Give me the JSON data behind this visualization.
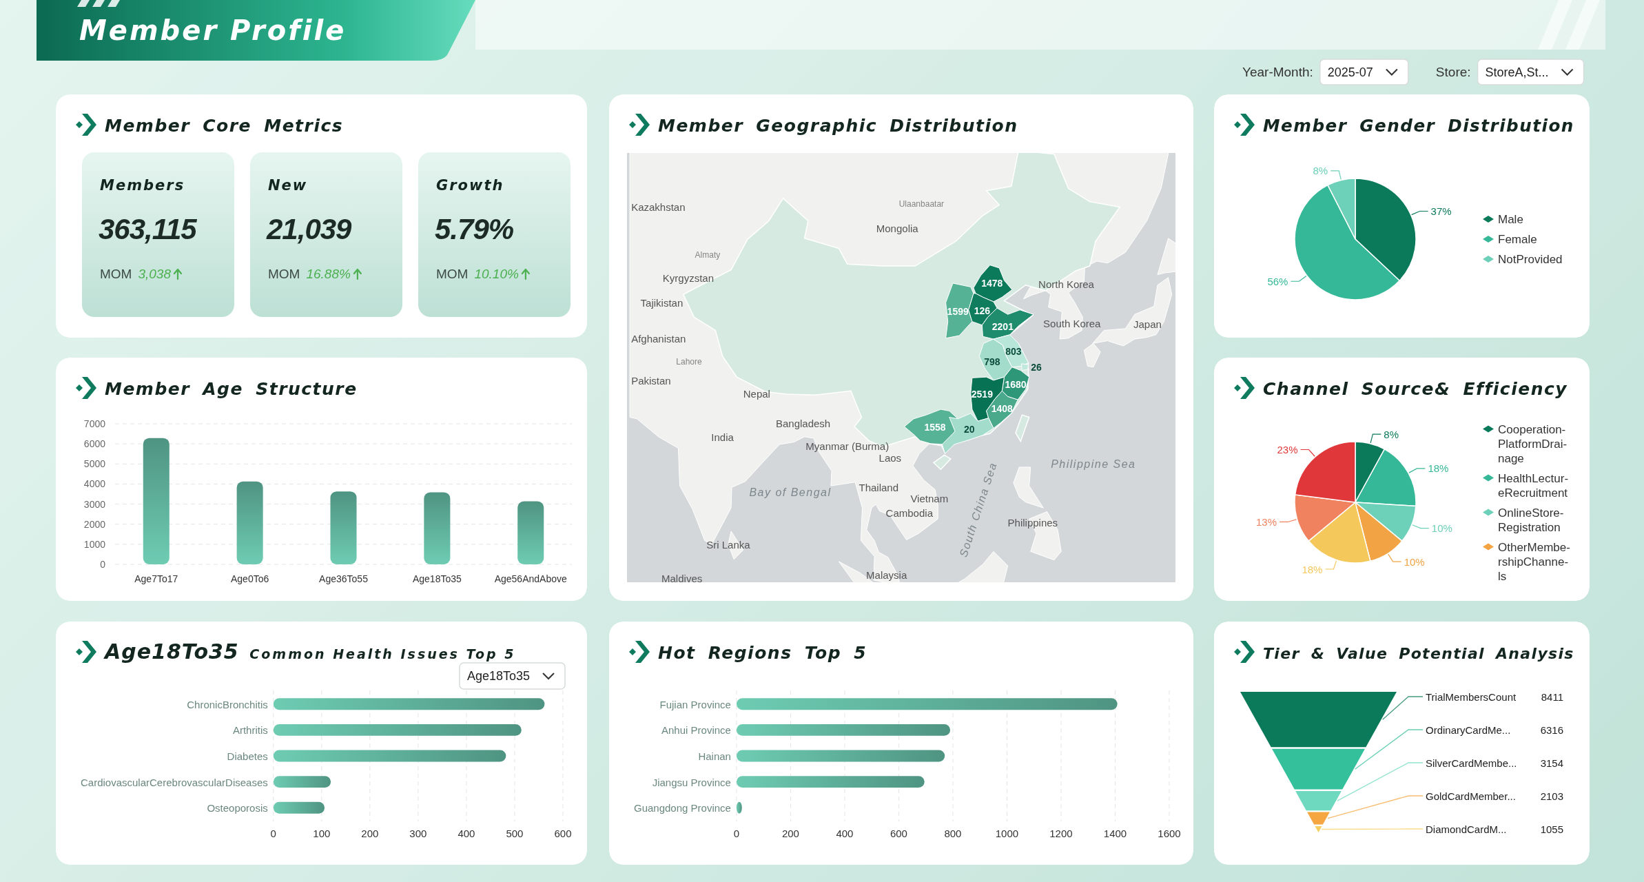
{
  "chart_data": [
    {
      "type": "other",
      "title": "Member Profile",
      "annotations": [
        "Year-Month:",
        "2025-07",
        "Store:",
        "StoreA,St..."
      ]
    },
    {
      "type": "other",
      "title": "Member Core Metrics",
      "annotations": [
        "Members",
        "363,115",
        "MOM",
        "3,038",
        "New",
        "21,039",
        "MOM",
        "16.88%",
        "Growth",
        "5.79%",
        "MOM",
        "10.10%"
      ]
    },
    {
      "type": "other",
      "title": "Member Geographic Distribution",
      "annotations": [
        "Mongolia",
        "Ulaanbaatar",
        "Kazakhstan",
        "Almaty",
        "Kyrgyzstan",
        "Tajikistan",
        "Afghanistan",
        "Pakistan",
        "Lahore",
        "Nepal",
        "India",
        "Bangladesh",
        "Myanmar (Burma)",
        "Laos",
        "Thailand",
        "Vietnam",
        "Cambodia",
        "Philippines",
        "Malaysia",
        "Sri Lanka",
        "Maldives",
        "Bay of Bengal",
        "Philippine Sea",
        "South China Sea",
        "North Korea",
        "South Korea",
        "Japan",
        "1478",
        "1599",
        "126",
        "2201",
        "798",
        "803",
        "1680",
        "26",
        "2519",
        "1408",
        "1558",
        "20"
      ]
    },
    {
      "type": "pie",
      "title": "Member Gender Distribution",
      "categories": [
        "Male",
        "Female",
        "NotProvided"
      ],
      "values": [
        37,
        55.5,
        7.5
      ],
      "value_labels": [
        "37%",
        "56%",
        "8%"
      ],
      "colors": [
        "#0b7a5a",
        "#35b897",
        "#6dd0b8"
      ],
      "legend": "right"
    },
    {
      "type": "bar",
      "title": "Member Age Structure",
      "categories": [
        "Age7To17",
        "Age0To6",
        "Age36To55",
        "Age18To35",
        "Age56AndAbove"
      ],
      "values": [
        6290,
        4130,
        3630,
        3590,
        3140
      ],
      "color": "#5aa893",
      "ylim": [
        0,
        7000
      ],
      "yticks": [
        0,
        1000,
        2000,
        3000,
        4000,
        5000,
        6000,
        7000
      ],
      "grid": "y"
    },
    {
      "type": "pie",
      "title": "Channel Source& Efficiency",
      "categories": [
        "Cooperation-PlatformDrai-nage",
        "HealthLectur-eRecruitment",
        "OnlineStore-Registration",
        "OtherMembe-rshipChanne-ls",
        null,
        null,
        null
      ],
      "values": [
        8,
        18,
        10,
        10,
        18,
        13,
        23
      ],
      "value_labels": [
        "8%",
        "18%",
        "10%",
        "10%",
        "18%",
        "13%",
        "23%"
      ],
      "colors": [
        "#0b7a5a",
        "#35b897",
        "#6dd0b8",
        "#f2a444",
        "#f5c85c",
        "#f0825f",
        "#e0383a"
      ],
      "legend": "right"
    },
    {
      "type": "bar",
      "orientation": "horizontal",
      "title": "Age18To35 Common Health Issues Top 5",
      "categories": [
        "ChronicBronchitis",
        "Arthritis",
        "Diabetes",
        "CardiovascularCerebrovascularDiseases",
        "Osteoporosis"
      ],
      "values": [
        562,
        514,
        482,
        119,
        106
      ],
      "color": "#5aa893",
      "xlim": [
        0,
        600
      ],
      "xticks": [
        0,
        100,
        200,
        300,
        400,
        500,
        600
      ],
      "grid": "x",
      "annotations": [
        "Age18To35"
      ]
    },
    {
      "type": "bar",
      "orientation": "horizontal",
      "title": "Hot Regions Top 5",
      "categories": [
        "Fujian Province",
        "Anhui Province",
        "Hainan",
        "Jiangsu Province",
        "Guangdong Province"
      ],
      "values": [
        1408,
        790,
        770,
        695,
        20
      ],
      "color": "#5aa893",
      "xlim": [
        0,
        1600
      ],
      "xticks": [
        0,
        200,
        400,
        600,
        800,
        1000,
        1200,
        1400,
        1600
      ],
      "grid": "x"
    },
    {
      "type": "other",
      "title": "Tier & Value Potential Analysis",
      "categories": [
        "TrialMembersCount",
        "OrdinaryCardMe...",
        "SilverCardMembe...",
        "GoldCardMember...",
        "DiamondCardM..."
      ],
      "values": [
        8411,
        6316,
        3154,
        2103,
        1055
      ],
      "colors": [
        "#0b7a5a",
        "#35c09c",
        "#6fd9bf",
        "#f5a640",
        "#f5d060"
      ],
      "data_labels": true
    }
  ]
}
